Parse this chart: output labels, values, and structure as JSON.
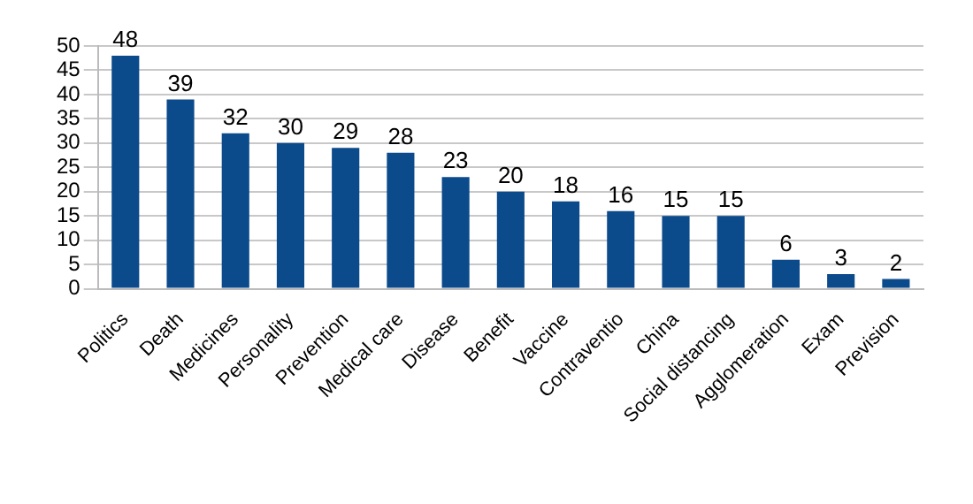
{
  "chart_data": {
    "type": "bar",
    "categories": [
      "Politics",
      "Death",
      "Medicines",
      "Personality",
      "Prevention",
      "Medical care",
      "Disease",
      "Benefit",
      "Vaccine",
      "Contraventio",
      "China",
      "Social distancing",
      "Agglomeration",
      "Exam",
      "Prevision"
    ],
    "values": [
      48,
      39,
      32,
      30,
      29,
      28,
      23,
      20,
      18,
      16,
      15,
      15,
      6,
      3,
      2
    ],
    "color": "#0b4a8b",
    "ylim": [
      0,
      50
    ],
    "yticks": [
      0,
      5,
      10,
      15,
      20,
      25,
      30,
      35,
      40,
      45,
      50
    ],
    "grid": "y",
    "data_labels": true,
    "legend": false
  }
}
